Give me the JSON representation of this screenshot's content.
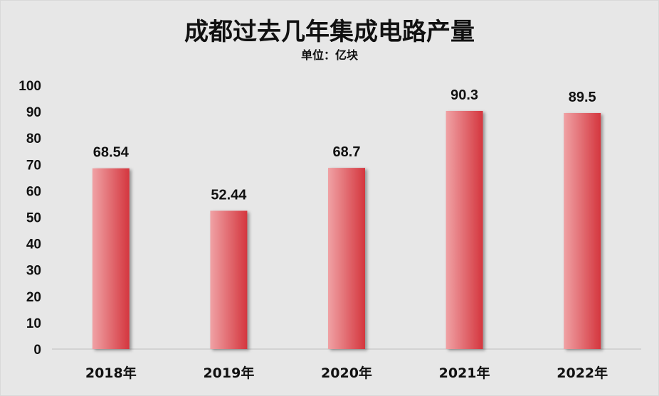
{
  "chart_data": {
    "type": "bar",
    "title": "成都过去几年集成电路产量",
    "subtitle": "单位：亿块",
    "categories": [
      "2018年",
      "2019年",
      "2020年",
      "2021年",
      "2022年"
    ],
    "values": [
      68.54,
      52.44,
      68.7,
      90.3,
      89.5
    ],
    "data_labels": [
      "68.54",
      "52.44",
      "68.7",
      "90.3",
      "89.5"
    ],
    "ylim": [
      0,
      100
    ],
    "yticks": [
      "0",
      "10",
      "20",
      "30",
      "40",
      "50",
      "60",
      "70",
      "80",
      "90",
      "100"
    ],
    "grid": false,
    "legend": "none"
  },
  "colors": {
    "background": "#e7e7e7",
    "bar_light": "#f0a2a5",
    "bar_dark": "#d4363e",
    "text": "#111111"
  }
}
